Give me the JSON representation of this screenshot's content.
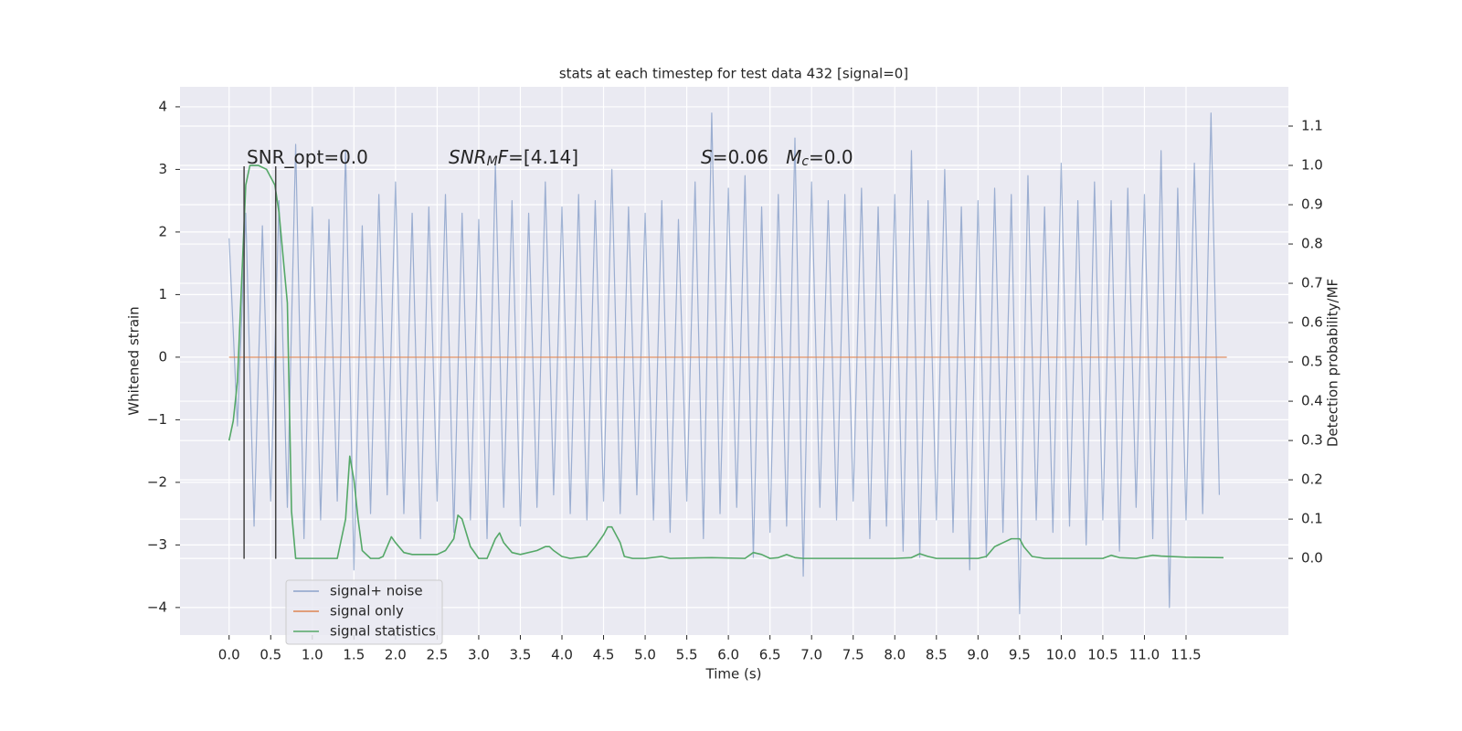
{
  "chart_data": {
    "type": "line",
    "title": "stats at each timestep for test data 432 [signal=0]",
    "x_label": "Time (s)",
    "y_label": "Whitened strain",
    "y2_label": "Detection probability/MF",
    "xlim": [
      -0.59,
      12.73
    ],
    "ylim": [
      -4.44,
      4.32
    ],
    "y2lim": [
      -0.195,
      1.2
    ],
    "xticks": [
      {
        "value": 0,
        "label": "0.0"
      },
      0.5,
      {
        "value": 1,
        "label": "1.0"
      },
      1.5,
      {
        "value": 2,
        "label": "2.0"
      },
      2.5,
      {
        "value": 3,
        "label": "3.0"
      },
      3.5,
      {
        "value": 4,
        "label": "4.0"
      },
      4.5,
      {
        "value": 5,
        "label": "5.0"
      },
      5.5,
      {
        "value": 6,
        "label": "6.0"
      },
      6.5,
      {
        "value": 7,
        "label": "7.0"
      },
      7.5,
      {
        "value": 8,
        "label": "8.0"
      },
      8.5,
      {
        "value": 9,
        "label": "9.0"
      },
      9.5,
      {
        "value": 10,
        "label": "10.0"
      },
      10.5,
      {
        "value": 11,
        "label": "11.0"
      },
      11.5
    ],
    "yticks": [
      {
        "value": -4,
        "label": "−4"
      },
      {
        "value": -3,
        "label": "−3"
      },
      {
        "value": -2,
        "label": "−2"
      },
      {
        "value": -1,
        "label": "−1"
      },
      0,
      1,
      2,
      3,
      4
    ],
    "y2ticks": [
      {
        "value": 0,
        "label": "0.0"
      },
      0.1,
      0.2,
      0.3,
      0.4,
      0.5,
      0.6,
      0.7,
      0.8,
      0.9,
      {
        "value": 1,
        "label": "1.0"
      },
      1.1
    ],
    "grid": true,
    "legend": "lower left",
    "series": [
      {
        "name": "signal+ noise",
        "color": "#4c72b0",
        "x": [
          0,
          0.1,
          0.2,
          0.3,
          0.4,
          0.5,
          0.6,
          0.7,
          0.8,
          0.9,
          1,
          1.1,
          1.2,
          1.3,
          1.4,
          1.5,
          1.6,
          1.7,
          1.8,
          1.9,
          2,
          2.1,
          2.2,
          2.3,
          2.4,
          2.5,
          2.6,
          2.7,
          2.8,
          2.9,
          3,
          3.1,
          3.2,
          3.3,
          3.4,
          3.5,
          3.6,
          3.7,
          3.8,
          3.9,
          4,
          4.1,
          4.2,
          4.3,
          4.4,
          4.5,
          4.6,
          4.7,
          4.8,
          4.9,
          5,
          5.1,
          5.2,
          5.3,
          5.4,
          5.5,
          5.6,
          5.7,
          5.8,
          5.9,
          6,
          6.1,
          6.2,
          6.3,
          6.4,
          6.5,
          6.6,
          6.7,
          6.8,
          6.9,
          7,
          7.1,
          7.2,
          7.3,
          7.4,
          7.5,
          7.6,
          7.7,
          7.8,
          7.9,
          8,
          8.1,
          8.2,
          8.3,
          8.4,
          8.5,
          8.6,
          8.7,
          8.8,
          8.9,
          9,
          9.1,
          9.2,
          9.3,
          9.4,
          9.5,
          9.6,
          9.7,
          9.8,
          9.9,
          10,
          10.1,
          10.2,
          10.3,
          10.4,
          10.5,
          10.6,
          10.7,
          10.8,
          10.9,
          11,
          11.1,
          11.2,
          11.3,
          11.4,
          11.5,
          11.6,
          11.7,
          11.8,
          11.9
        ],
        "values": [
          1.9,
          -1.1,
          2.3,
          -2.7,
          2.1,
          -2.3,
          2.5,
          -2.4,
          3.4,
          -2.9,
          2.4,
          -2.6,
          2.2,
          -2.3,
          3.3,
          -3.4,
          2.1,
          -2.5,
          2.6,
          -2.2,
          2.8,
          -2.5,
          2.3,
          -2.9,
          2.4,
          -2.3,
          2.6,
          -2.8,
          2.3,
          -2.6,
          2.2,
          -2.9,
          3.1,
          -2.4,
          2.5,
          -2.7,
          2.3,
          -2.4,
          2.8,
          -2.2,
          2.4,
          -2.5,
          2.6,
          -2.6,
          2.5,
          -2.3,
          3.0,
          -2.5,
          2.4,
          -2.2,
          2.3,
          -2.6,
          2.5,
          -2.8,
          2.2,
          -2.3,
          2.8,
          -2.9,
          3.9,
          -2.5,
          2.7,
          -2.4,
          2.9,
          -3.2,
          2.4,
          -2.8,
          2.6,
          -2.7,
          3.5,
          -3.5,
          2.8,
          -2.4,
          2.5,
          -2.6,
          2.6,
          -2.3,
          2.7,
          -2.9,
          2.4,
          -2.7,
          2.6,
          -3.1,
          3.3,
          -3.2,
          2.5,
          -2.6,
          3.0,
          -2.8,
          2.4,
          -3.4,
          2.5,
          -3.2,
          2.7,
          -2.8,
          2.6,
          -4.1,
          2.9,
          -2.6,
          2.4,
          -2.8,
          3.1,
          -2.7,
          2.5,
          -3.0,
          2.8,
          -2.6,
          2.5,
          -3.1,
          2.7,
          -2.4,
          2.6,
          -2.9,
          3.3,
          -4.0,
          2.7,
          -2.6,
          3.1,
          -2.5,
          3.9,
          -2.2
        ]
      },
      {
        "name": "signal only",
        "color": "#dd8452",
        "x": [
          0,
          11.99
        ],
        "values": [
          0,
          0
        ]
      },
      {
        "name": "signal statistics",
        "color": "#55a868",
        "axis": "y2",
        "x": [
          0,
          0.05,
          0.1,
          0.15,
          0.2,
          0.25,
          0.35,
          0.45,
          0.55,
          0.6,
          0.7,
          0.75,
          0.8,
          0.9,
          1.0,
          1.1,
          1.2,
          1.3,
          1.4,
          1.45,
          1.5,
          1.55,
          1.6,
          1.7,
          1.8,
          1.85,
          1.9,
          1.95,
          2.0,
          2.1,
          2.2,
          2.4,
          2.5,
          2.6,
          2.7,
          2.75,
          2.8,
          2.9,
          3.0,
          3.1,
          3.2,
          3.25,
          3.3,
          3.4,
          3.5,
          3.7,
          3.8,
          3.85,
          3.9,
          4.0,
          4.1,
          4.3,
          4.4,
          4.5,
          4.55,
          4.6,
          4.7,
          4.75,
          4.85,
          5.0,
          5.2,
          5.3,
          5.8,
          6.2,
          6.3,
          6.4,
          6.5,
          6.6,
          6.7,
          6.8,
          6.9,
          7.5,
          8.0,
          8.2,
          8.3,
          8.4,
          8.5,
          9.0,
          9.1,
          9.2,
          9.3,
          9.4,
          9.5,
          9.55,
          9.65,
          9.8,
          10.5,
          10.6,
          10.7,
          10.9,
          11.1,
          11.2,
          11.5,
          11.95
        ],
        "values": [
          0.3,
          0.35,
          0.45,
          0.7,
          0.95,
          1.0,
          1.0,
          0.99,
          0.95,
          0.88,
          0.65,
          0.12,
          0.0,
          0.0,
          0.0,
          0.0,
          0.0,
          0.0,
          0.1,
          0.26,
          0.2,
          0.1,
          0.02,
          0.0,
          0.0,
          0.005,
          0.03,
          0.055,
          0.04,
          0.015,
          0.01,
          0.01,
          0.01,
          0.02,
          0.05,
          0.11,
          0.1,
          0.03,
          0.0,
          0.0,
          0.05,
          0.065,
          0.04,
          0.015,
          0.01,
          0.02,
          0.03,
          0.03,
          0.02,
          0.005,
          0.0,
          0.005,
          0.03,
          0.06,
          0.08,
          0.08,
          0.04,
          0.005,
          0.0,
          0.0,
          0.005,
          0.0,
          0.002,
          0.0,
          0.015,
          0.01,
          0.0,
          0.002,
          0.01,
          0.002,
          0.0,
          0.0,
          0.0,
          0.002,
          0.012,
          0.005,
          0.0,
          0.0,
          0.005,
          0.03,
          0.04,
          0.05,
          0.05,
          0.03,
          0.005,
          0.0,
          0.0,
          0.008,
          0.002,
          0.0,
          0.008,
          0.006,
          0.003,
          0.002
        ]
      }
    ],
    "vlines": {
      "color": "#444444",
      "x": [
        0.18,
        0.56
      ],
      "ymin": -3.22,
      "ymax": 3.05
    },
    "annotations": [
      [
        {
          "text": "SNR_opt=0.0"
        }
      ],
      [
        {
          "text": "SNR",
          "style": "italic"
        },
        {
          "text": "M",
          "style": "sub"
        },
        {
          "text": "F",
          "style": "italic"
        },
        {
          "text": "=[4.14]"
        }
      ],
      [
        {
          "text": "S",
          "style": "italic"
        },
        {
          "text": "=0.06   "
        },
        {
          "text": "M",
          "style": "italic"
        },
        {
          "text": "c",
          "style": "sub"
        },
        {
          "text": "=0.0"
        }
      ]
    ]
  }
}
